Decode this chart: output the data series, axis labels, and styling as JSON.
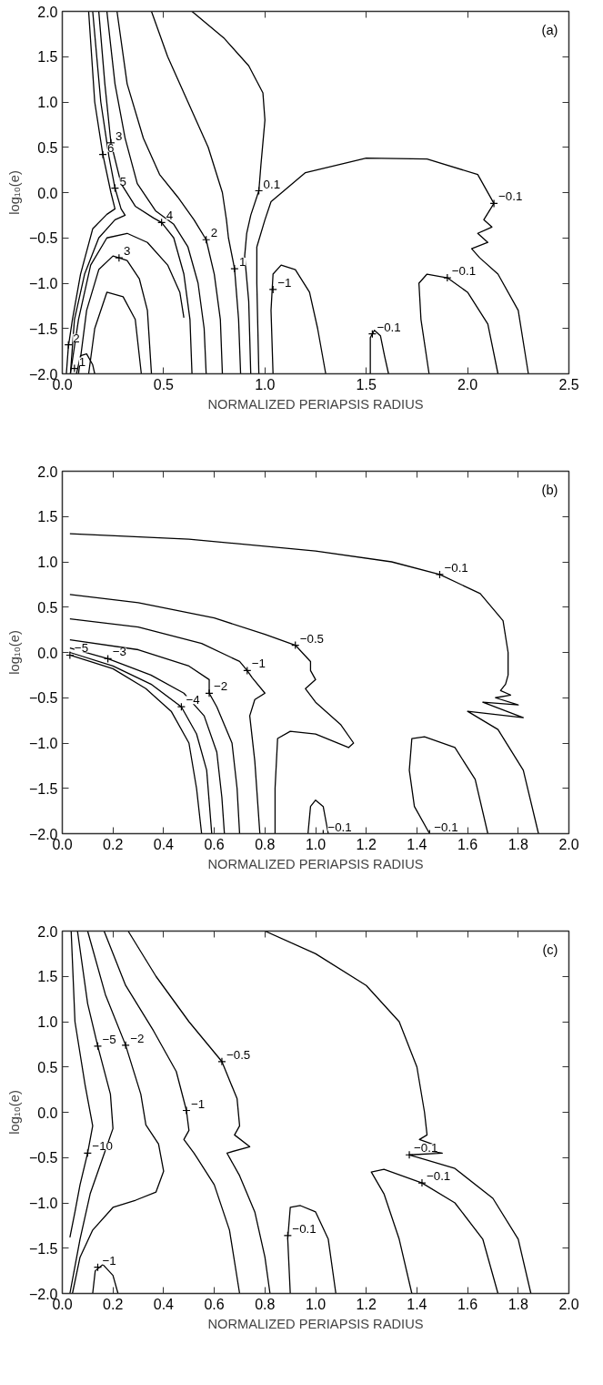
{
  "chart_data": [
    {
      "type": "line",
      "xlabel": "NORMALIZED PERIAPSIS RADIUS",
      "ylabel": "log₁₀(e)",
      "xlim": [
        0.0,
        2.5
      ],
      "ylim": [
        -2.0,
        2.0
      ],
      "xticks": [
        {
          "value": 0.0,
          "label": "0.0"
        },
        {
          "value": 0.5,
          "label": "0.5"
        },
        {
          "value": 1.0,
          "label": "1.0"
        },
        {
          "value": 1.5,
          "label": "1.5"
        },
        {
          "value": 2.0,
          "label": "2.0"
        },
        {
          "value": 2.5,
          "label": "2.5"
        }
      ],
      "yticks": [
        {
          "value": -2.0,
          "label": "−2.0"
        },
        {
          "value": -1.5,
          "label": "−1.5"
        },
        {
          "value": -1.0,
          "label": "−1.0"
        },
        {
          "value": -0.5,
          "label": "−0.5"
        },
        {
          "value": 0.0,
          "label": "0.0"
        },
        {
          "value": 0.5,
          "label": "0.5"
        },
        {
          "value": 1.0,
          "label": "1.0"
        },
        {
          "value": 1.5,
          "label": "1.5"
        },
        {
          "value": 2.0,
          "label": "2.0"
        }
      ],
      "series": [
        {
          "color": "#000000",
          "x": [
            0.13,
            0.16,
            0.2,
            0.24,
            0.26,
            0.22,
            0.15,
            0.09,
            0.05,
            0.03,
            0.02
          ],
          "values": [
            2.0,
            1.0,
            0.42,
            0.0,
            -0.18,
            -0.24,
            -0.4,
            -0.9,
            -1.4,
            -1.7,
            -2.0
          ]
        },
        {
          "color": "#000000",
          "x": [
            0.15,
            0.19,
            0.23,
            0.26,
            0.29,
            0.31,
            0.26,
            0.18,
            0.11,
            0.06,
            0.04
          ],
          "values": [
            2.0,
            1.0,
            0.4,
            0.05,
            -0.18,
            -0.25,
            -0.3,
            -0.5,
            -0.9,
            -1.4,
            -2.0
          ]
        },
        {
          "color": "#000000",
          "x": [
            0.18,
            0.21,
            0.24,
            0.29,
            0.36,
            0.45,
            0.49,
            0.55,
            0.6,
            0.63,
            0.64
          ],
          "values": [
            2.0,
            1.2,
            0.55,
            0.1,
            -0.15,
            -0.28,
            -0.33,
            -0.5,
            -0.9,
            -1.4,
            -2.0
          ]
        },
        {
          "color": "#000000",
          "x": [
            0.22,
            0.26,
            0.31,
            0.37,
            0.46,
            0.55,
            0.62,
            0.67,
            0.7,
            0.71
          ],
          "values": [
            2.0,
            1.2,
            0.6,
            0.1,
            -0.2,
            -0.35,
            -0.6,
            -1.0,
            -1.5,
            -2.0
          ]
        },
        {
          "color": "#000000",
          "x": [
            0.27,
            0.32,
            0.4,
            0.48,
            0.57,
            0.65,
            0.71,
            0.75,
            0.78,
            0.79
          ],
          "values": [
            2.0,
            1.2,
            0.6,
            0.2,
            -0.05,
            -0.3,
            -0.52,
            -0.9,
            -1.4,
            -2.0
          ]
        },
        {
          "color": "#000000",
          "x": [
            0.44,
            0.52,
            0.62,
            0.72,
            0.79,
            0.81,
            0.82,
            0.85,
            0.87,
            0.88
          ],
          "values": [
            2.0,
            1.5,
            1.0,
            0.5,
            0.0,
            -0.3,
            -0.5,
            -0.84,
            -1.4,
            -2.0
          ]
        },
        {
          "color": "#000000",
          "x": [
            0.64,
            0.8,
            0.92,
            0.99,
            1.0,
            0.98,
            0.97,
            0.93,
            0.91,
            0.9,
            0.92,
            0.93
          ],
          "values": [
            2.0,
            1.7,
            1.4,
            1.1,
            0.8,
            0.3,
            0.02,
            -0.25,
            -0.45,
            -0.7,
            -1.2,
            -2.0
          ]
        },
        {
          "color": "#000000",
          "x": [
            0.04,
            0.08,
            0.14,
            0.22,
            0.32,
            0.42,
            0.52,
            0.58,
            0.6
          ],
          "values": [
            -2.0,
            -1.4,
            -0.8,
            -0.5,
            -0.45,
            -0.55,
            -0.8,
            -1.1,
            -1.38
          ]
        },
        {
          "color": "#000000",
          "x": [
            0.08,
            0.12,
            0.18,
            0.25,
            0.28,
            0.32,
            0.38,
            0.42,
            0.44
          ],
          "values": [
            -2.0,
            -1.3,
            -0.85,
            -0.7,
            -0.72,
            -0.75,
            -0.95,
            -1.3,
            -2.0
          ]
        },
        {
          "color": "#000000",
          "x": [
            0.13,
            0.16,
            0.22,
            0.3,
            0.36,
            0.39
          ],
          "values": [
            -2.0,
            -1.5,
            -1.1,
            -1.15,
            -1.4,
            -2.0
          ]
        },
        {
          "color": "#000000",
          "x": [
            0.07,
            0.09,
            0.12,
            0.15,
            0.16
          ],
          "values": [
            -2.0,
            -1.8,
            -1.78,
            -1.9,
            -2.0
          ]
        },
        {
          "color": "#000000",
          "x": [
            0.97,
            0.96,
            0.96,
            1.0,
            1.03,
            1.2,
            1.5,
            1.8,
            2.05,
            2.13,
            2.08,
            2.12,
            2.05,
            2.1,
            2.02,
            2.06,
            2.15,
            2.25,
            2.3
          ],
          "values": [
            -2.0,
            -1.0,
            -0.6,
            -0.3,
            -0.1,
            0.22,
            0.38,
            0.37,
            0.2,
            -0.12,
            -0.3,
            -0.38,
            -0.45,
            -0.55,
            -0.62,
            -0.72,
            -0.9,
            -1.3,
            -2.0
          ]
        },
        {
          "color": "#000000",
          "x": [
            1.04,
            1.03,
            1.04,
            1.08,
            1.15,
            1.22,
            1.26,
            1.3
          ],
          "values": [
            -2.0,
            -1.3,
            -0.9,
            -0.8,
            -0.85,
            -1.1,
            -1.5,
            -2.0
          ]
        },
        {
          "color": "#000000",
          "x": [
            1.52,
            1.52,
            1.54,
            1.57,
            1.59,
            1.61
          ],
          "values": [
            -2.0,
            -1.6,
            -1.52,
            -1.58,
            -1.8,
            -2.0
          ]
        },
        {
          "color": "#000000",
          "x": [
            1.81,
            1.77,
            1.76,
            1.8,
            1.9,
            2.0,
            2.1,
            2.15
          ],
          "values": [
            -2.0,
            -1.4,
            -1.0,
            -0.9,
            -0.94,
            -1.1,
            -1.45,
            -2.0
          ]
        }
      ],
      "annotations": [
        "(a)",
        {
          "text": "6",
          "x": 0.2,
          "y": 0.42
        },
        {
          "text": "3",
          "x": 0.24,
          "y": 0.55
        },
        {
          "text": "5",
          "x": 0.26,
          "y": 0.05
        },
        {
          "text": "4",
          "x": 0.49,
          "y": -0.33
        },
        {
          "text": "2",
          "x": 0.71,
          "y": -0.52
        },
        {
          "text": "1",
          "x": 0.85,
          "y": -0.84
        },
        {
          "text": "3",
          "x": 0.28,
          "y": -0.72
        },
        {
          "text": "2",
          "x": 0.03,
          "y": -1.68
        },
        {
          "text": "1",
          "x": 0.06,
          "y": -1.94
        },
        {
          "text": "0.1",
          "x": 0.97,
          "y": 0.02
        },
        {
          "text": "−0.1",
          "x": 2.13,
          "y": -0.12
        },
        {
          "text": "−1",
          "x": 1.04,
          "y": -1.07
        },
        {
          "text": "−0.1",
          "x": 1.53,
          "y": -1.56
        },
        {
          "text": "−0.1",
          "x": 1.9,
          "y": -0.94
        }
      ]
    },
    {
      "type": "line",
      "xlabel": "NORMALIZED PERIAPSIS RADIUS",
      "ylabel": "log₁₀(e)",
      "xlim": [
        0.0,
        2.0
      ],
      "ylim": [
        -2.0,
        2.0
      ],
      "xticks": [
        {
          "value": 0.0,
          "label": "0.0"
        },
        {
          "value": 0.2,
          "label": "0.2"
        },
        {
          "value": 0.4,
          "label": "0.4"
        },
        {
          "value": 0.6,
          "label": "0.6"
        },
        {
          "value": 0.8,
          "label": "0.8"
        },
        {
          "value": 1.0,
          "label": "1.0"
        },
        {
          "value": 1.2,
          "label": "1.2"
        },
        {
          "value": 1.4,
          "label": "1.4"
        },
        {
          "value": 1.6,
          "label": "1.6"
        },
        {
          "value": 1.8,
          "label": "1.8"
        },
        {
          "value": 2.0,
          "label": "2.0"
        }
      ],
      "yticks": [
        {
          "value": -2.0,
          "label": "−2.0"
        },
        {
          "value": -1.5,
          "label": "−1.5"
        },
        {
          "value": -1.0,
          "label": "−1.0"
        },
        {
          "value": -0.5,
          "label": "−0.5"
        },
        {
          "value": 0.0,
          "label": "0.0"
        },
        {
          "value": 0.5,
          "label": "0.5"
        },
        {
          "value": 1.0,
          "label": "1.0"
        },
        {
          "value": 1.5,
          "label": "1.5"
        },
        {
          "value": 2.0,
          "label": "2.0"
        }
      ],
      "series": [
        {
          "color": "#000000",
          "x": [
            0.03,
            0.5,
            1.0,
            1.3,
            1.49,
            1.65,
            1.74,
            1.76,
            1.76,
            1.75,
            1.73,
            1.77,
            1.71,
            1.8,
            1.66,
            1.82,
            1.6,
            1.72,
            1.82,
            1.88
          ],
          "values": [
            1.31,
            1.25,
            1.12,
            1.0,
            0.86,
            0.65,
            0.35,
            0.0,
            -0.25,
            -0.35,
            -0.42,
            -0.47,
            -0.5,
            -0.58,
            -0.55,
            -0.72,
            -0.65,
            -0.85,
            -1.3,
            -2.0
          ]
        },
        {
          "color": "#000000",
          "x": [
            0.03,
            0.3,
            0.6,
            0.8,
            0.92,
            0.98,
            0.98,
            1.0,
            0.96,
            1.0,
            1.1,
            1.15,
            1.13,
            1.0,
            0.9,
            0.85,
            0.84,
            0.84
          ],
          "values": [
            0.64,
            0.55,
            0.38,
            0.2,
            0.08,
            -0.1,
            -0.2,
            -0.3,
            -0.4,
            -0.55,
            -0.8,
            -1.0,
            -1.05,
            -0.9,
            -0.87,
            -0.95,
            -1.5,
            -2.0
          ]
        },
        {
          "color": "#000000",
          "x": [
            0.03,
            0.3,
            0.55,
            0.7,
            0.73,
            0.75,
            0.8,
            0.76,
            0.74,
            0.76,
            0.78
          ],
          "values": [
            0.37,
            0.28,
            0.1,
            -0.1,
            -0.2,
            -0.28,
            -0.45,
            -0.52,
            -0.7,
            -1.2,
            -2.0
          ]
        },
        {
          "color": "#000000",
          "x": [
            0.03,
            0.3,
            0.5,
            0.58,
            0.58,
            0.61,
            0.67,
            0.69,
            0.7
          ],
          "values": [
            0.14,
            0.03,
            -0.15,
            -0.3,
            -0.45,
            -0.6,
            -1.0,
            -1.5,
            -2.0
          ]
        },
        {
          "color": "#000000",
          "x": [
            0.03,
            0.18,
            0.35,
            0.48,
            0.56,
            0.61,
            0.63,
            0.64
          ],
          "values": [
            0.05,
            -0.07,
            -0.25,
            -0.45,
            -0.7,
            -1.1,
            -1.6,
            -2.0
          ]
        },
        {
          "color": "#000000",
          "x": [
            0.03,
            0.2,
            0.35,
            0.47,
            0.53,
            0.57,
            0.59
          ],
          "values": [
            0.0,
            -0.15,
            -0.35,
            -0.6,
            -0.9,
            -1.3,
            -2.0
          ]
        },
        {
          "color": "#000000",
          "x": [
            0.03,
            0.2,
            0.33,
            0.43,
            0.5,
            0.53,
            0.55
          ],
          "values": [
            -0.03,
            -0.18,
            -0.4,
            -0.65,
            -1.0,
            -1.5,
            -2.0
          ]
        },
        {
          "color": "#000000",
          "x": [
            0.97,
            0.98,
            1.0,
            1.03,
            1.05
          ],
          "values": [
            -2.0,
            -1.7,
            -1.63,
            -1.7,
            -2.0
          ]
        },
        {
          "color": "#000000",
          "x": [
            1.45,
            1.39,
            1.37,
            1.38,
            1.43,
            1.55,
            1.63,
            1.68
          ],
          "values": [
            -2.0,
            -1.7,
            -1.3,
            -0.95,
            -0.93,
            -1.05,
            -1.4,
            -2.0
          ]
        }
      ],
      "annotations": [
        "(b)",
        {
          "text": "−0.1",
          "x": 1.49,
          "y": 0.86
        },
        {
          "text": "−0.5",
          "x": 0.92,
          "y": 0.08
        },
        {
          "text": "−1",
          "x": 0.73,
          "y": -0.2
        },
        {
          "text": "−2",
          "x": 0.58,
          "y": -0.45
        },
        {
          "text": "−3",
          "x": 0.18,
          "y": -0.07
        },
        {
          "text": "−4",
          "x": 0.47,
          "y": -0.6
        },
        {
          "text": "−5",
          "x": 0.03,
          "y": -0.03
        },
        {
          "text": "−0.1",
          "x": 1.03,
          "y": -2.0
        },
        {
          "text": "−0.1",
          "x": 1.45,
          "y": -2.0
        }
      ]
    },
    {
      "type": "line",
      "xlabel": "NORMALIZED PERIAPSIS RADIUS",
      "ylabel": "log₁₀(e)",
      "xlim": [
        0.0,
        2.0
      ],
      "ylim": [
        -2.0,
        2.0
      ],
      "xticks": [
        {
          "value": 0.0,
          "label": "0.0"
        },
        {
          "value": 0.2,
          "label": "0.2"
        },
        {
          "value": 0.4,
          "label": "0.4"
        },
        {
          "value": 0.6,
          "label": "0.6"
        },
        {
          "value": 0.8,
          "label": "0.8"
        },
        {
          "value": 1.0,
          "label": "1.0"
        },
        {
          "value": 1.2,
          "label": "1.2"
        },
        {
          "value": 1.4,
          "label": "1.4"
        },
        {
          "value": 1.6,
          "label": "1.6"
        },
        {
          "value": 1.8,
          "label": "1.8"
        },
        {
          "value": 2.0,
          "label": "2.0"
        }
      ],
      "yticks": [
        {
          "value": -2.0,
          "label": "−2.0"
        },
        {
          "value": -1.5,
          "label": "−1.5"
        },
        {
          "value": -1.0,
          "label": "−1.0"
        },
        {
          "value": -0.5,
          "label": "−0.5"
        },
        {
          "value": 0.0,
          "label": "0.0"
        },
        {
          "value": 0.5,
          "label": "0.5"
        },
        {
          "value": 1.0,
          "label": "1.0"
        },
        {
          "value": 1.5,
          "label": "1.5"
        },
        {
          "value": 2.0,
          "label": "2.0"
        }
      ],
      "series": [
        {
          "color": "#000000",
          "x": [
            0.035,
            0.05,
            0.09,
            0.12,
            0.1,
            0.07,
            0.05,
            0.03
          ],
          "values": [
            2.0,
            1.0,
            0.3,
            -0.15,
            -0.45,
            -0.8,
            -1.1,
            -1.38
          ]
        },
        {
          "color": "#000000",
          "x": [
            0.06,
            0.1,
            0.14,
            0.19,
            0.2,
            0.16,
            0.11,
            0.07,
            0.05,
            0.03
          ],
          "values": [
            2.0,
            1.2,
            0.73,
            0.2,
            -0.18,
            -0.5,
            -0.9,
            -1.4,
            -1.7,
            -2.0
          ]
        },
        {
          "color": "#000000",
          "x": [
            0.1,
            0.17,
            0.25,
            0.31,
            0.33,
            0.38,
            0.4,
            0.37,
            0.29,
            0.2,
            0.12,
            0.07,
            0.04
          ],
          "values": [
            2.0,
            1.3,
            0.74,
            0.2,
            -0.14,
            -0.35,
            -0.65,
            -0.88,
            -0.97,
            -1.05,
            -1.3,
            -1.6,
            -2.0
          ]
        },
        {
          "color": "#000000",
          "x": [
            0.165,
            0.25,
            0.36,
            0.45,
            0.49,
            0.5,
            0.48,
            0.52,
            0.6,
            0.66,
            0.7
          ],
          "values": [
            2.0,
            1.4,
            0.9,
            0.45,
            0.02,
            -0.2,
            -0.3,
            -0.45,
            -0.8,
            -1.3,
            -2.0
          ]
        },
        {
          "color": "#000000",
          "x": [
            0.26,
            0.37,
            0.5,
            0.63,
            0.69,
            0.7,
            0.68,
            0.74,
            0.65,
            0.7,
            0.76,
            0.8,
            0.82
          ],
          "values": [
            2.0,
            1.5,
            1.0,
            0.56,
            0.15,
            -0.15,
            -0.25,
            -0.38,
            -0.45,
            -0.7,
            -1.1,
            -1.6,
            -2.0
          ]
        },
        {
          "color": "#000000",
          "x": [
            0.12,
            0.13,
            0.16,
            0.2,
            0.22
          ],
          "values": [
            -2.0,
            -1.75,
            -1.68,
            -1.8,
            -2.0
          ]
        },
        {
          "color": "#000000",
          "x": [
            0.8,
            1.0,
            1.2,
            1.33,
            1.4,
            1.43,
            1.44,
            1.41,
            1.46,
            1.39,
            1.5,
            1.37,
            1.55,
            1.7,
            1.8,
            1.85
          ],
          "values": [
            2.0,
            1.75,
            1.4,
            1.0,
            0.5,
            0.0,
            -0.25,
            -0.3,
            -0.35,
            -0.4,
            -0.45,
            -0.47,
            -0.62,
            -0.95,
            -1.4,
            -2.0
          ]
        },
        {
          "color": "#000000",
          "x": [
            1.38,
            1.33,
            1.27,
            1.22,
            1.27,
            1.42,
            1.55,
            1.66,
            1.72
          ],
          "values": [
            -2.0,
            -1.4,
            -0.9,
            -0.66,
            -0.63,
            -0.78,
            -1.0,
            -1.4,
            -2.0
          ]
        },
        {
          "color": "#000000",
          "x": [
            0.9,
            0.89,
            0.9,
            0.94,
            1.0,
            1.05,
            1.08
          ],
          "values": [
            -2.0,
            -1.4,
            -1.05,
            -1.03,
            -1.1,
            -1.4,
            -2.0
          ]
        }
      ],
      "annotations": [
        "(c)",
        {
          "text": "−10",
          "x": 0.1,
          "y": -0.45
        },
        {
          "text": "−5",
          "x": 0.14,
          "y": 0.73
        },
        {
          "text": "−2",
          "x": 0.25,
          "y": 0.74
        },
        {
          "text": "−1",
          "x": 0.49,
          "y": 0.02
        },
        {
          "text": "−0.5",
          "x": 0.63,
          "y": 0.56
        },
        {
          "text": "−0.1",
          "x": 1.37,
          "y": -0.47
        },
        {
          "text": "−0.1",
          "x": 1.42,
          "y": -0.78
        },
        {
          "text": "−0.1",
          "x": 0.89,
          "y": -1.36
        },
        {
          "text": "−1",
          "x": 0.14,
          "y": -1.71
        }
      ]
    }
  ]
}
